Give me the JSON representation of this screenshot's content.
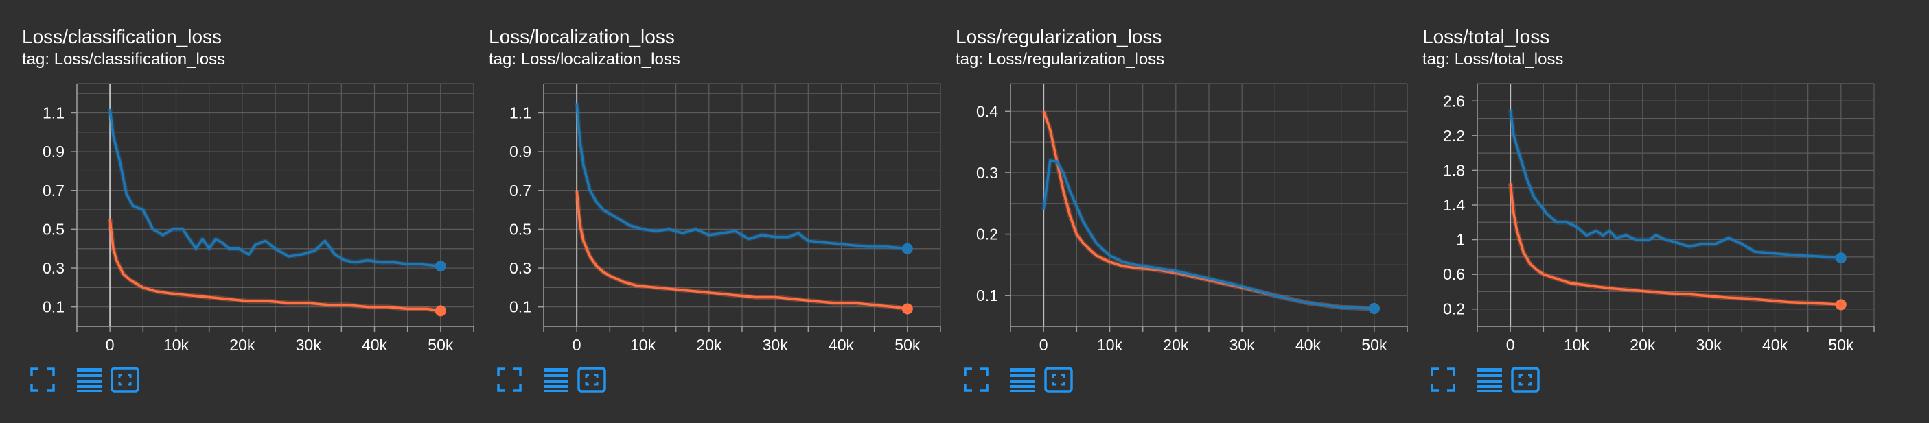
{
  "colors": {
    "background": "#303030",
    "blue": "#1f77b4",
    "orange": "#ff7043",
    "grid": "#5c5c5c",
    "accent_icon": "#2196f3"
  },
  "toolbar_icons": [
    "fullscreen-icon",
    "lines-icon",
    "fit-domain-icon"
  ],
  "chart_data": [
    {
      "type": "line",
      "title": "Loss/classification_loss",
      "subtitle": "tag: Loss/classification_loss",
      "xlim": [
        -5000,
        55000
      ],
      "ylim": [
        0.0,
        1.25
      ],
      "xticks": [
        0,
        10000,
        20000,
        30000,
        40000,
        50000
      ],
      "xtick_labels": [
        "0",
        "10k",
        "20k",
        "30k",
        "40k",
        "50k"
      ],
      "yticks": [
        0.1,
        0.3,
        0.5,
        0.7,
        0.9,
        1.1
      ],
      "ytick_labels": [
        "0.1",
        "0.3",
        "0.5",
        "0.7",
        "0.9",
        "1.1"
      ],
      "grid": true,
      "series": [
        {
          "color": "#1f77b4",
          "x": [
            0,
            500,
            1500,
            2500,
            3500,
            5000,
            6500,
            8000,
            9500,
            11000,
            12000,
            13000,
            14000,
            15000,
            16000,
            17000,
            18000,
            19500,
            21000,
            22000,
            23500,
            25000,
            27000,
            29000,
            31000,
            32500,
            34000,
            35500,
            37000,
            39000,
            41000,
            43000,
            45000,
            47000,
            50000
          ],
          "y": [
            1.12,
            0.98,
            0.85,
            0.68,
            0.62,
            0.6,
            0.5,
            0.47,
            0.5,
            0.5,
            0.45,
            0.4,
            0.45,
            0.4,
            0.45,
            0.43,
            0.4,
            0.4,
            0.37,
            0.42,
            0.44,
            0.4,
            0.36,
            0.37,
            0.39,
            0.44,
            0.37,
            0.34,
            0.33,
            0.34,
            0.33,
            0.33,
            0.32,
            0.32,
            0.31
          ]
        },
        {
          "color": "#ff7043",
          "x": [
            0,
            500,
            1000,
            2000,
            3000,
            4000,
            5000,
            7000,
            9000,
            12000,
            15000,
            18000,
            21000,
            24000,
            27000,
            30000,
            33000,
            36000,
            39000,
            42000,
            45000,
            48000,
            50000
          ],
          "y": [
            0.55,
            0.4,
            0.34,
            0.27,
            0.24,
            0.22,
            0.2,
            0.18,
            0.17,
            0.16,
            0.15,
            0.14,
            0.13,
            0.13,
            0.12,
            0.12,
            0.11,
            0.11,
            0.1,
            0.1,
            0.09,
            0.09,
            0.08
          ]
        }
      ]
    },
    {
      "type": "line",
      "title": "Loss/localization_loss",
      "subtitle": "tag: Loss/localization_loss",
      "xlim": [
        -5000,
        55000
      ],
      "ylim": [
        0.0,
        1.25
      ],
      "xticks": [
        0,
        10000,
        20000,
        30000,
        40000,
        50000
      ],
      "xtick_labels": [
        "0",
        "10k",
        "20k",
        "30k",
        "40k",
        "50k"
      ],
      "yticks": [
        0.1,
        0.3,
        0.5,
        0.7,
        0.9,
        1.1
      ],
      "ytick_labels": [
        "0.1",
        "0.3",
        "0.5",
        "0.7",
        "0.9",
        "1.1"
      ],
      "grid": true,
      "series": [
        {
          "color": "#1f77b4",
          "x": [
            0,
            500,
            1000,
            2000,
            3000,
            4000,
            5000,
            6500,
            8000,
            10000,
            12000,
            14000,
            16000,
            18000,
            20000,
            22000,
            24000,
            26000,
            28000,
            30000,
            32000,
            33500,
            35000,
            38000,
            41000,
            44000,
            47000,
            50000
          ],
          "y": [
            1.15,
            0.95,
            0.83,
            0.7,
            0.64,
            0.6,
            0.58,
            0.55,
            0.52,
            0.5,
            0.49,
            0.5,
            0.48,
            0.5,
            0.47,
            0.48,
            0.49,
            0.45,
            0.47,
            0.46,
            0.46,
            0.48,
            0.44,
            0.43,
            0.42,
            0.41,
            0.41,
            0.4
          ]
        },
        {
          "color": "#ff7043",
          "x": [
            0,
            500,
            1000,
            2000,
            3000,
            4000,
            5000,
            7000,
            9000,
            12000,
            15000,
            18000,
            21000,
            24000,
            27000,
            30000,
            33000,
            36000,
            39000,
            42000,
            45000,
            48000,
            50000
          ],
          "y": [
            0.7,
            0.52,
            0.44,
            0.36,
            0.31,
            0.28,
            0.26,
            0.23,
            0.21,
            0.2,
            0.19,
            0.18,
            0.17,
            0.16,
            0.15,
            0.15,
            0.14,
            0.13,
            0.12,
            0.12,
            0.11,
            0.1,
            0.09
          ]
        }
      ]
    },
    {
      "type": "line",
      "title": "Loss/regularization_loss",
      "subtitle": "tag: Loss/regularization_loss",
      "xlim": [
        -5000,
        55000
      ],
      "ylim": [
        0.05,
        0.445
      ],
      "xticks": [
        0,
        10000,
        20000,
        30000,
        40000,
        50000
      ],
      "xtick_labels": [
        "0",
        "10k",
        "20k",
        "30k",
        "40k",
        "50k"
      ],
      "yticks": [
        0.1,
        0.2,
        0.3,
        0.4
      ],
      "ytick_labels": [
        "0.1",
        "0.2",
        "0.3",
        "0.4"
      ],
      "grid": true,
      "series": [
        {
          "color": "#ff7043",
          "x": [
            0,
            1000,
            2000,
            3000,
            4000,
            5000,
            6000,
            8000,
            10000,
            12000,
            14000,
            17000,
            20000,
            25000,
            30000,
            35000,
            40000,
            45000,
            50000
          ],
          "y": [
            0.4,
            0.37,
            0.32,
            0.27,
            0.23,
            0.2,
            0.185,
            0.165,
            0.155,
            0.148,
            0.145,
            0.142,
            0.137,
            0.125,
            0.113,
            0.1,
            0.088,
            0.081,
            0.079
          ]
        },
        {
          "color": "#1f77b4",
          "x": [
            0,
            500,
            1000,
            2000,
            3000,
            4000,
            5000,
            6000,
            8000,
            10000,
            12000,
            14000,
            17000,
            20000,
            25000,
            30000,
            35000,
            40000,
            45000,
            50000
          ],
          "y": [
            0.24,
            0.28,
            0.32,
            0.318,
            0.3,
            0.27,
            0.245,
            0.22,
            0.185,
            0.165,
            0.155,
            0.15,
            0.145,
            0.14,
            0.128,
            0.115,
            0.1,
            0.088,
            0.081,
            0.079
          ]
        }
      ]
    },
    {
      "type": "line",
      "title": "Loss/total_loss",
      "subtitle": "tag: Loss/total_loss",
      "xlim": [
        -5000,
        55000
      ],
      "ylim": [
        0.0,
        2.8
      ],
      "xticks": [
        0,
        10000,
        20000,
        30000,
        40000,
        50000
      ],
      "xtick_labels": [
        "0",
        "10k",
        "20k",
        "30k",
        "40k",
        "50k"
      ],
      "yticks": [
        0.2,
        0.6,
        1.0,
        1.4,
        1.8,
        2.2,
        2.6
      ],
      "ytick_labels": [
        "0.2",
        "0.6",
        "1",
        "1.4",
        "1.8",
        "2.2",
        "2.6"
      ],
      "grid": true,
      "series": [
        {
          "color": "#1f77b4",
          "x": [
            0,
            500,
            1500,
            2500,
            3500,
            4500,
            5500,
            7000,
            8500,
            10000,
            11500,
            13000,
            14000,
            15000,
            16000,
            17500,
            19000,
            21000,
            22000,
            23500,
            25000,
            27000,
            29000,
            31000,
            33000,
            35000,
            37000,
            40000,
            43000,
            46000,
            50000
          ],
          "y": [
            2.5,
            2.2,
            1.95,
            1.7,
            1.5,
            1.4,
            1.3,
            1.2,
            1.2,
            1.15,
            1.05,
            1.1,
            1.05,
            1.1,
            1.02,
            1.05,
            1.0,
            1.0,
            1.05,
            1.0,
            0.97,
            0.92,
            0.95,
            0.95,
            1.02,
            0.95,
            0.86,
            0.84,
            0.82,
            0.81,
            0.79
          ]
        },
        {
          "color": "#ff7043",
          "x": [
            0,
            500,
            1000,
            2000,
            3000,
            4000,
            5000,
            7000,
            9000,
            12000,
            15000,
            18000,
            21000,
            24000,
            27000,
            30000,
            33000,
            36000,
            39000,
            42000,
            45000,
            48000,
            50000
          ],
          "y": [
            1.65,
            1.3,
            1.1,
            0.85,
            0.72,
            0.65,
            0.6,
            0.55,
            0.5,
            0.47,
            0.44,
            0.42,
            0.4,
            0.38,
            0.37,
            0.35,
            0.33,
            0.32,
            0.3,
            0.28,
            0.27,
            0.26,
            0.25
          ]
        }
      ]
    }
  ]
}
